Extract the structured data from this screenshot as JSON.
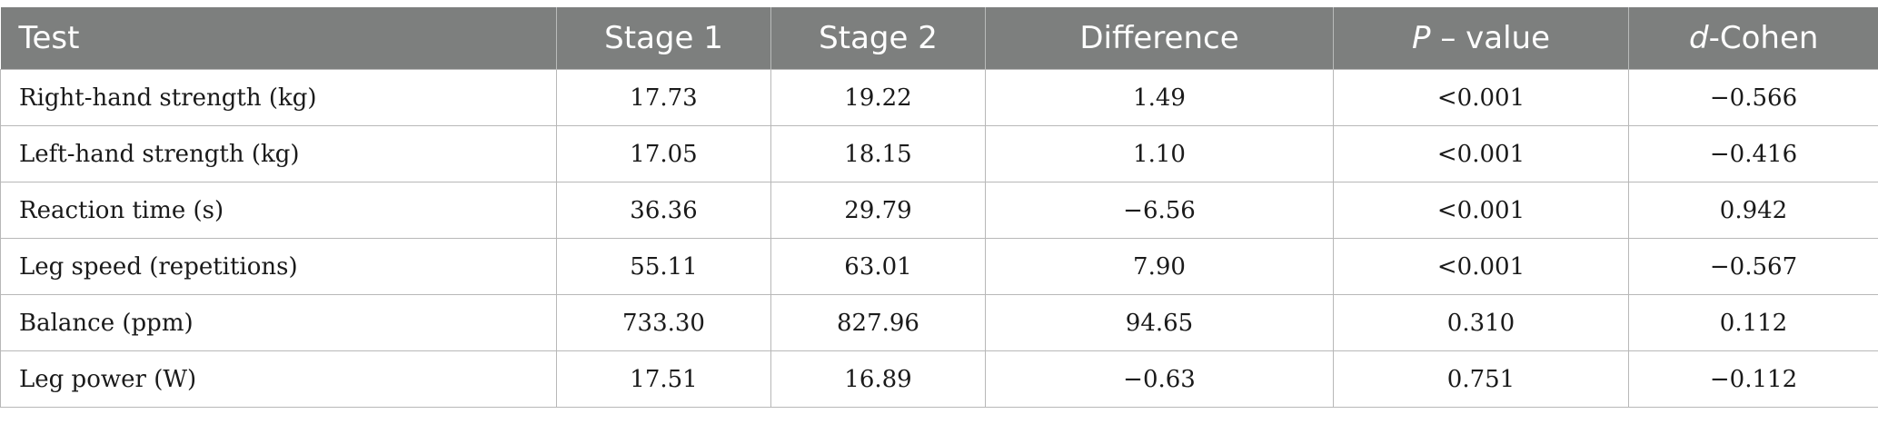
{
  "table": {
    "headers": {
      "test": "Test",
      "stage1": "Stage 1",
      "stage2": "Stage 2",
      "difference": "Difference",
      "p_value_symbol": "P",
      "p_value_suffix": " – value",
      "cohen_symbol": "d",
      "cohen_suffix": "-Cohen"
    },
    "rows": [
      {
        "test": "Right-hand strength (kg)",
        "stage1": "17.73",
        "stage2": "19.22",
        "difference": "1.49",
        "p_value": "<0.001",
        "cohen_d": "−0.566"
      },
      {
        "test": "Left-hand strength (kg)",
        "stage1": "17.05",
        "stage2": "18.15",
        "difference": "1.10",
        "p_value": "<0.001",
        "cohen_d": "−0.416"
      },
      {
        "test": "Reaction time (s)",
        "stage1": "36.36",
        "stage2": "29.79",
        "difference": "−6.56",
        "p_value": "<0.001",
        "cohen_d": "0.942"
      },
      {
        "test": "Leg speed (repetitions)",
        "stage1": "55.11",
        "stage2": "63.01",
        "difference": "7.90",
        "p_value": "<0.001",
        "cohen_d": "−0.567"
      },
      {
        "test": "Balance (ppm)",
        "stage1": "733.30",
        "stage2": "827.96",
        "difference": "94.65",
        "p_value": "0.310",
        "cohen_d": "0.112"
      },
      {
        "test": "Leg power (W)",
        "stage1": "17.51",
        "stage2": "16.89",
        "difference": "−0.63",
        "p_value": "0.751",
        "cohen_d": "−0.112"
      }
    ]
  }
}
